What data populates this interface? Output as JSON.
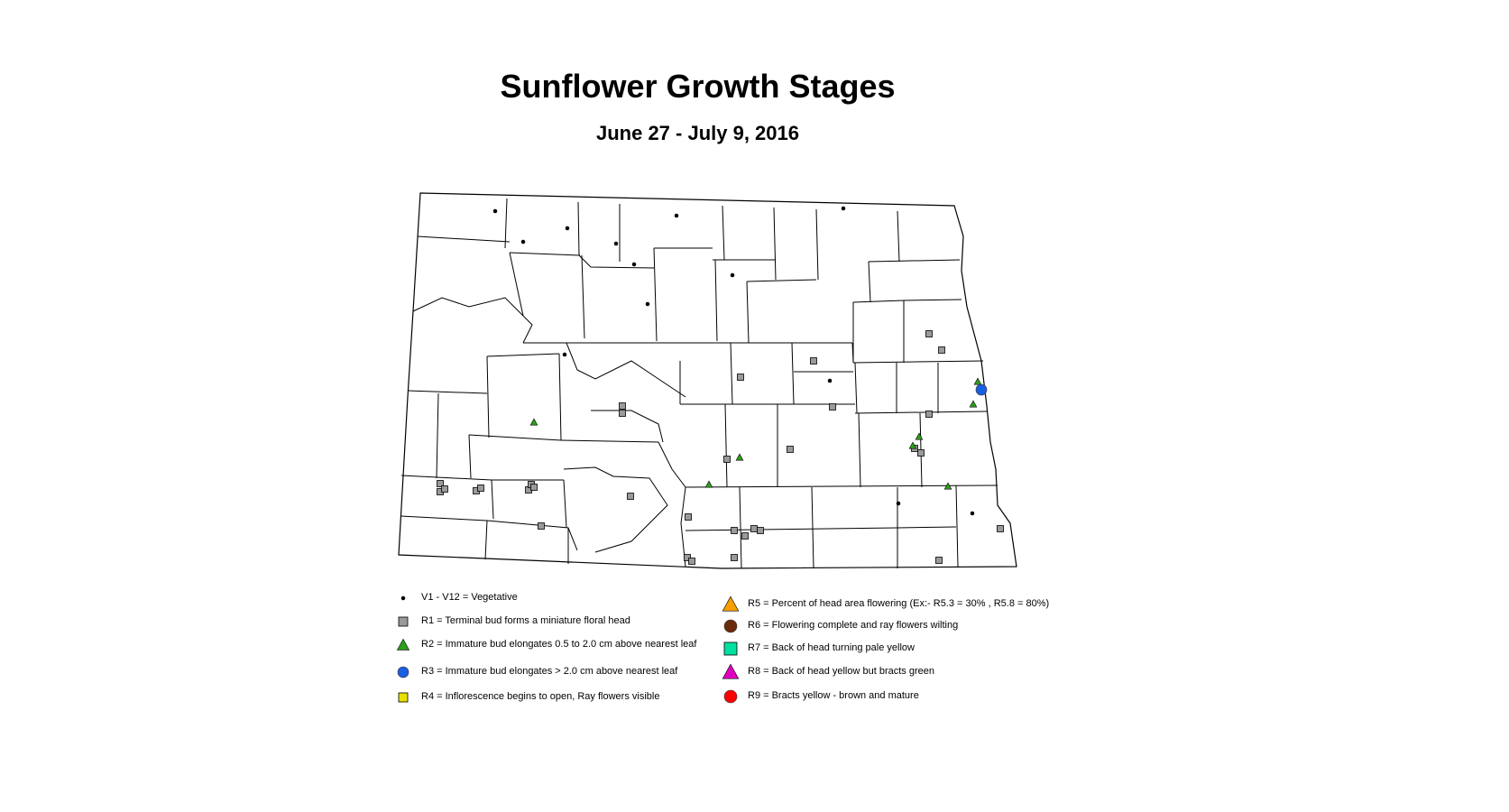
{
  "title": "Sunflower Growth Stages",
  "subtitle": "June 27 - July 9, 2016",
  "legend": {
    "left": [
      {
        "key": "V",
        "symbol": "dot",
        "color": "#000000",
        "label": "V1 - V12 = Vegetative"
      },
      {
        "key": "R1",
        "symbol": "square",
        "color": "#9a9a9a",
        "label": "R1 = Terminal bud forms a miniature floral head"
      },
      {
        "key": "R2",
        "symbol": "triangle",
        "color": "#2e9e1a",
        "label": "R2 = Immature bud elongates 0.5 to 2.0 cm above nearest leaf"
      },
      {
        "key": "R3",
        "symbol": "circle",
        "color": "#1a5fe0",
        "label": "R3 = Immature bud elongates > 2.0 cm above nearest leaf"
      },
      {
        "key": "R4",
        "symbol": "square",
        "color": "#e8e000",
        "label": "R4 = Inflorescence begins to open, Ray flowers visible"
      }
    ],
    "right": [
      {
        "key": "R5",
        "symbol": "triangle",
        "color": "#f5a000",
        "label": "R5 = Percent of head area flowering (Ex:- R5.3 = 30% , R5.8 = 80%)"
      },
      {
        "key": "R6",
        "symbol": "circle",
        "color": "#6b2a0a",
        "label": "R6 = Flowering complete and ray flowers wilting"
      },
      {
        "key": "R7",
        "symbol": "square",
        "color": "#00e0a0",
        "label": "R7 = Back of head turning pale yellow"
      },
      {
        "key": "R8",
        "symbol": "triangle",
        "color": "#e000c0",
        "label": "R8 = Back of head yellow but bracts green"
      },
      {
        "key": "R9",
        "symbol": "circle",
        "color": "#ff0000",
        "label": "R9 = Bracts yellow - brown and mature"
      }
    ]
  }
}
